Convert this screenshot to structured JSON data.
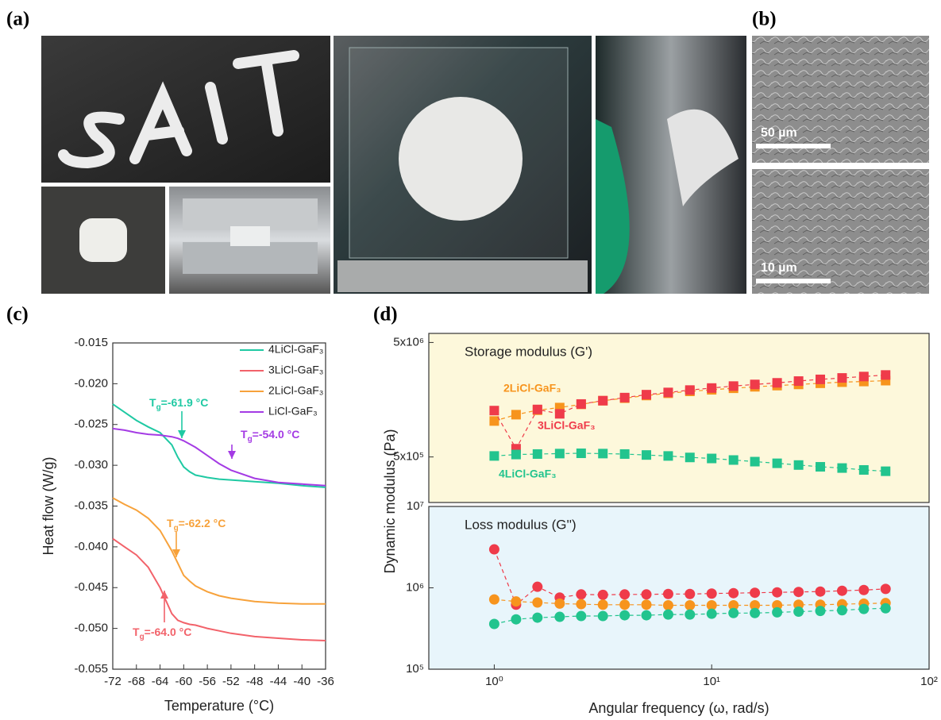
{
  "panel_labels": [
    "(a)",
    "(b)",
    "(c)",
    "(d)"
  ],
  "scale_bars": [
    "50 µm",
    "10 µm"
  ],
  "chart_data": [
    {
      "type": "line",
      "xlabel": "Temperature (°C)",
      "ylabel": "Heat flow (W/g)",
      "xlim": [
        -72,
        -36
      ],
      "xticks": [
        -72,
        -68,
        -64,
        -60,
        -56,
        -52,
        -48,
        -44,
        -40,
        -36
      ],
      "ylim": [
        -0.055,
        -0.015
      ],
      "yticks": [
        -0.015,
        {
          "value": -0.02,
          "label": "-0.020"
        },
        -0.025,
        {
          "value": -0.03,
          "label": "-0.030"
        },
        -0.035,
        {
          "value": -0.04,
          "label": "-0.040"
        },
        -0.045,
        {
          "value": -0.05,
          "label": "-0.050"
        },
        -0.055
      ],
      "grid": false,
      "legend": "upper right",
      "x": [
        -72,
        -70,
        -68,
        -66,
        -64,
        -62,
        -61,
        -60,
        -59,
        -58,
        -56,
        -54,
        -52,
        -48,
        -44,
        -40,
        -36
      ],
      "series": [
        {
          "name": "4LiCl-GaF₃",
          "color": "#1fc9a3",
          "values": [
            -0.0225,
            -0.0235,
            -0.0245,
            -0.0253,
            -0.026,
            -0.0275,
            -0.029,
            -0.0302,
            -0.0308,
            -0.0312,
            -0.0315,
            -0.0317,
            -0.0318,
            -0.032,
            -0.0322,
            -0.0325,
            -0.0327
          ]
        },
        {
          "name": "3LiCl-GaF₃",
          "color": "#f2626a",
          "values": [
            -0.039,
            -0.04,
            -0.041,
            -0.0425,
            -0.045,
            -0.0482,
            -0.049,
            -0.0493,
            -0.0495,
            -0.0496,
            -0.05,
            -0.0503,
            -0.0506,
            -0.051,
            -0.0512,
            -0.0514,
            -0.0515
          ]
        },
        {
          "name": "2LiCl-GaF₃",
          "color": "#f7a23b",
          "values": [
            -0.034,
            -0.0348,
            -0.0355,
            -0.0365,
            -0.038,
            -0.0405,
            -0.042,
            -0.0435,
            -0.0442,
            -0.0448,
            -0.0455,
            -0.046,
            -0.0463,
            -0.0467,
            -0.0469,
            -0.047,
            -0.047
          ]
        },
        {
          "name": "LiCl-GaF₃",
          "color": "#a43be4",
          "values": [
            -0.0255,
            -0.0257,
            -0.026,
            -0.0262,
            -0.0263,
            -0.0265,
            -0.0267,
            -0.027,
            -0.0274,
            -0.0278,
            -0.0288,
            -0.0298,
            -0.0306,
            -0.0316,
            -0.0321,
            -0.0323,
            -0.0325
          ]
        }
      ],
      "annotations": [
        {
          "parts": [
            "T",
            "g",
            "=-61.9 °C"
          ],
          "color": "#1fc9a3"
        },
        {
          "parts": [
            "T",
            "g",
            "=-54.0 °C"
          ],
          "color": "#a43be4"
        },
        {
          "parts": [
            "T",
            "g",
            "=-62.2 °C"
          ],
          "color": "#f7a23b"
        },
        {
          "parts": [
            "T",
            "g",
            "=-64.0 °C"
          ],
          "color": "#f2626a"
        }
      ]
    },
    {
      "type": "scatter",
      "xlabel": "Angular frequency (ω, rad/s)",
      "ylabel": "Dynamic modulus (Pa)",
      "log_x": true,
      "log_y": true,
      "xlim": [
        0.5,
        100
      ],
      "xticks": [
        {
          "value": 1,
          "label": "10⁰"
        },
        {
          "value": 10,
          "label": "10¹"
        },
        {
          "value": 100,
          "label": "10²"
        }
      ],
      "x": [
        1,
        1.26,
        1.58,
        2,
        2.51,
        3.16,
        3.98,
        5.01,
        6.31,
        7.94,
        10,
        12.6,
        15.8,
        20,
        25.1,
        31.6,
        39.8,
        50.1,
        63.1
      ],
      "panels": [
        {
          "title": "Storage modulus (G')",
          "background": "#fdf8db",
          "marker": "square",
          "ylim": [
            200000,
            6000000
          ],
          "yticks": [
            {
              "value": 500000,
              "label": "5x10⁵"
            },
            {
              "value": 5000000,
              "label": "5x10⁶"
            }
          ],
          "series": [
            {
              "name": "2LiCl-GaF₃",
              "color": "#f7941d",
              "values": [
                1030000,
                1170000,
                1280000,
                1350000,
                1440000,
                1550000,
                1630000,
                1720000,
                1800000,
                1870000,
                1930000,
                1990000,
                2050000,
                2100000,
                2150000,
                2200000,
                2250000,
                2280000,
                2320000
              ]
            },
            {
              "name": "3LiCl-GaF₃",
              "color": "#ef3b4a",
              "values": [
                1270000,
                590000,
                1300000,
                1190000,
                1450000,
                1550000,
                1650000,
                1750000,
                1830000,
                1920000,
                2000000,
                2080000,
                2150000,
                2220000,
                2300000,
                2380000,
                2450000,
                2520000,
                2600000
              ]
            },
            {
              "name": "4LiCl-GaF₃",
              "color": "#22c48e",
              "values": [
                510000,
                525000,
                530000,
                535000,
                538000,
                535000,
                530000,
                520000,
                510000,
                495000,
                485000,
                470000,
                455000,
                440000,
                425000,
                410000,
                400000,
                385000,
                375000
              ]
            }
          ]
        },
        {
          "title": "Loss modulus (G'')",
          "background": "#e8f5fb",
          "marker": "circle",
          "ylim": [
            100000,
            10000000
          ],
          "yticks": [
            {
              "value": 100000,
              "label": "10⁵"
            },
            {
              "value": 1000000,
              "label": "10⁶"
            },
            {
              "value": 10000000,
              "label": "10⁷"
            }
          ],
          "series": [
            {
              "color": "#ef3b4a",
              "values": [
                2970000,
                620000,
                1030000,
                760000,
                830000,
                820000,
                830000,
                830000,
                840000,
                840000,
                850000,
                860000,
                870000,
                880000,
                890000,
                900000,
                920000,
                940000,
                970000
              ]
            },
            {
              "color": "#f7941d",
              "values": [
                720000,
                680000,
                660000,
                640000,
                630000,
                620000,
                620000,
                620000,
                610000,
                610000,
                610000,
                610000,
                610000,
                610000,
                620000,
                620000,
                630000,
                640000,
                650000
              ]
            },
            {
              "color": "#22c48e",
              "values": [
                360000,
                410000,
                430000,
                440000,
                450000,
                450000,
                460000,
                460000,
                470000,
                470000,
                480000,
                490000,
                490000,
                500000,
                510000,
                520000,
                530000,
                550000,
                560000
              ]
            }
          ]
        }
      ]
    }
  ]
}
